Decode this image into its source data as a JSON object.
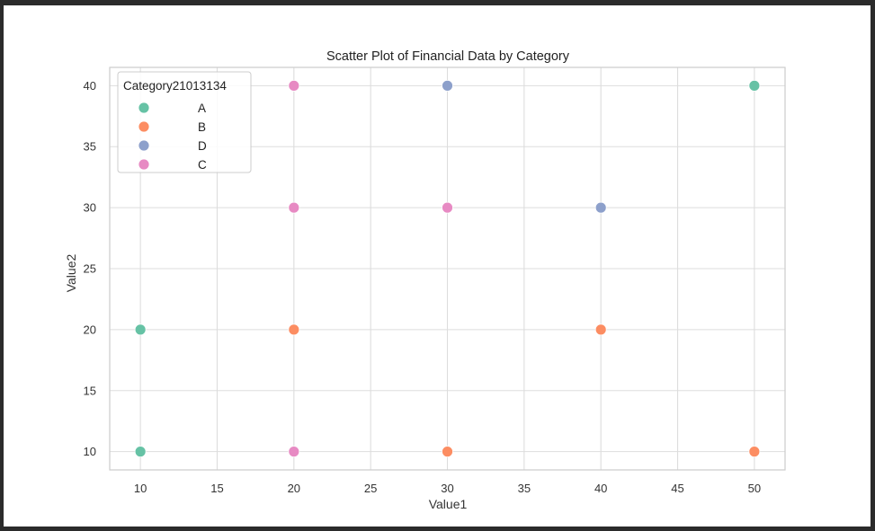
{
  "chart_data": {
    "type": "scatter",
    "title": "Scatter Plot of Financial Data by Category",
    "xlabel": "Value1",
    "ylabel": "Value2",
    "xlim": [
      8,
      52
    ],
    "ylim": [
      8.5,
      41.5
    ],
    "xticks": [
      10,
      15,
      20,
      25,
      30,
      35,
      40,
      45,
      50
    ],
    "yticks": [
      10,
      15,
      20,
      25,
      30,
      35,
      40
    ],
    "grid": true,
    "legend": {
      "title": "Category21013134",
      "placement": "top-left",
      "entries": [
        "A",
        "B",
        "D",
        "C"
      ]
    },
    "series": [
      {
        "name": "A",
        "color": "#66c2a5",
        "points": [
          [
            10,
            20
          ],
          [
            10,
            10
          ],
          [
            50,
            40
          ]
        ]
      },
      {
        "name": "B",
        "color": "#fc8d62",
        "points": [
          [
            20,
            20
          ],
          [
            40,
            20
          ],
          [
            30,
            10
          ],
          [
            50,
            10
          ]
        ]
      },
      {
        "name": "D",
        "color": "#8da0cb",
        "points": [
          [
            30,
            40
          ],
          [
            40,
            30
          ]
        ]
      },
      {
        "name": "C",
        "color": "#e78ac3",
        "points": [
          [
            20,
            40
          ],
          [
            20,
            30
          ],
          [
            30,
            30
          ],
          [
            20,
            10
          ]
        ]
      }
    ]
  }
}
